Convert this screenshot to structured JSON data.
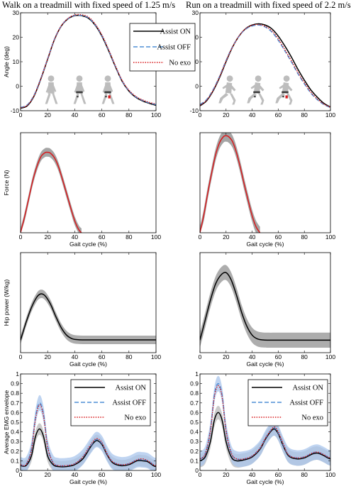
{
  "titles": {
    "left": "Walk on a treadmill with fixed speed of 1.25 m/s",
    "right": "Run on a treadmill with fixed speed of 2.2 m/s"
  },
  "legend": {
    "assist_on": "Assist ON",
    "assist_off": "Assist OFF",
    "no_exo": "No exo"
  },
  "colors": {
    "assist_on": "#000000",
    "assist_off": "#4f8fd6",
    "no_exo": "#d7191c",
    "force_band": "#a0a0a0",
    "force_line": "#d7191c",
    "power_band": "#a9a9a9",
    "emg_band_on": "#b9b9b9",
    "emg_band_off": "#a9c6ec"
  },
  "icons": [
    "walking-figure-icon",
    "walking-exo-figure-icon",
    "walking-exo-active-figure-icon",
    "running-figure-icon",
    "running-exo-figure-icon",
    "running-exo-active-figure-icon"
  ],
  "chart_data": [
    {
      "panel": "walk-angle",
      "type": "line",
      "xlabel": "",
      "ylabel": "Angle (deg)",
      "xlim": [
        0,
        100
      ],
      "ylim": [
        -10,
        30
      ],
      "xticks": [
        0,
        20,
        40,
        60,
        80,
        100
      ],
      "yticks": [
        -10,
        0,
        10,
        20,
        30
      ],
      "legend_position": "top-right",
      "series": [
        {
          "name": "Assist ON",
          "style": "solid",
          "x": [
            0,
            5,
            10,
            15,
            20,
            25,
            30,
            35,
            40,
            45,
            50,
            55,
            60,
            65,
            70,
            75,
            80,
            85,
            90,
            95,
            100
          ],
          "y": [
            -9,
            -8,
            -4,
            3,
            11,
            19,
            24.5,
            27.5,
            28.8,
            28.8,
            27.8,
            25,
            20.5,
            14.5,
            8,
            2,
            -2,
            -4.5,
            -6,
            -7,
            -7.8
          ]
        },
        {
          "name": "Assist OFF",
          "style": "dashed",
          "x": [
            0,
            5,
            10,
            15,
            20,
            25,
            30,
            35,
            40,
            45,
            50,
            55,
            60,
            65,
            70,
            75,
            80,
            85,
            90,
            95,
            100
          ],
          "y": [
            -8.7,
            -7.6,
            -3.6,
            3.3,
            11.3,
            19.2,
            24.6,
            27.6,
            28.9,
            28.9,
            28,
            25.2,
            20.8,
            14.8,
            8.2,
            2.2,
            -1.8,
            -4.3,
            -5.8,
            -6.8,
            -7.5
          ]
        },
        {
          "name": "No exo",
          "style": "dotted",
          "x": [
            0,
            5,
            10,
            15,
            20,
            25,
            30,
            35,
            40,
            45,
            50,
            55,
            60,
            65,
            70,
            75,
            80,
            85,
            90,
            95,
            100
          ],
          "y": [
            -8.8,
            -7.8,
            -3.8,
            3.2,
            11.2,
            19.1,
            24.6,
            27.7,
            29.1,
            29.2,
            28.3,
            25.5,
            21,
            15,
            8.4,
            2.4,
            -1.6,
            -4.1,
            -5.6,
            -6.6,
            -7.3
          ]
        }
      ]
    },
    {
      "panel": "run-angle",
      "type": "line",
      "xlabel": "",
      "ylabel": "",
      "xlim": [
        0,
        100
      ],
      "ylim": [
        -10,
        30
      ],
      "xticks": [
        0,
        20,
        40,
        60,
        80,
        100
      ],
      "yticks": [
        -10,
        0,
        10,
        20,
        30
      ],
      "series": [
        {
          "name": "Assist ON",
          "style": "solid",
          "x": [
            0,
            5,
            10,
            15,
            20,
            25,
            30,
            35,
            40,
            45,
            50,
            55,
            60,
            65,
            70,
            75,
            80,
            85,
            90,
            95,
            100
          ],
          "y": [
            -8,
            -6,
            -2,
            3.5,
            10,
            16,
            20.5,
            23.5,
            25,
            25.5,
            25,
            23.5,
            20.5,
            16.5,
            12,
            7,
            2.5,
            -1.5,
            -4.5,
            -7,
            -8.5
          ]
        },
        {
          "name": "Assist OFF",
          "style": "dashed",
          "x": [
            0,
            5,
            10,
            15,
            20,
            25,
            30,
            35,
            40,
            45,
            50,
            55,
            60,
            65,
            70,
            75,
            80,
            85,
            90,
            95,
            100
          ],
          "y": [
            -7.5,
            -5.5,
            -1.5,
            4,
            10.5,
            16.2,
            20.5,
            23.3,
            24.6,
            25,
            24.2,
            22.2,
            18.8,
            14.5,
            10,
            5.2,
            1,
            -2.8,
            -5.5,
            -7.5,
            -8.7
          ]
        },
        {
          "name": "No exo",
          "style": "dotted",
          "x": [
            0,
            5,
            10,
            15,
            20,
            25,
            30,
            35,
            40,
            45,
            50,
            55,
            60,
            65,
            70,
            75,
            80,
            85,
            90,
            95,
            100
          ],
          "y": [
            -7.8,
            -5.8,
            -1.8,
            3.8,
            10.3,
            16.1,
            20.6,
            23.5,
            24.9,
            25.2,
            24.5,
            22.7,
            19.4,
            15,
            10.5,
            5.7,
            1.5,
            -2.4,
            -5.2,
            -7.3,
            -8.6
          ]
        }
      ]
    },
    {
      "panel": "walk-force",
      "type": "line",
      "xlabel": "Gait cycle (%)",
      "ylabel": "Force (N)",
      "xlim": [
        0,
        100
      ],
      "ylim": [
        0,
        500
      ],
      "xticks": [
        0,
        20,
        40,
        60,
        80,
        100
      ],
      "yticks": [],
      "series": [
        {
          "name": "",
          "style": "solid-with-band",
          "band": 22,
          "x": [
            0,
            3,
            6,
            9,
            12,
            15,
            18,
            20,
            22,
            25,
            28,
            31,
            34,
            37,
            40,
            43,
            45
          ],
          "y": [
            0,
            80,
            170,
            260,
            330,
            380,
            400,
            402,
            398,
            375,
            330,
            265,
            195,
            125,
            60,
            15,
            0
          ]
        }
      ]
    },
    {
      "panel": "run-force",
      "type": "line",
      "xlabel": "Gait cycle (%)",
      "ylabel": "",
      "xlim": [
        0,
        100
      ],
      "ylim": [
        0,
        500
      ],
      "xticks": [
        0,
        20,
        40,
        60,
        80,
        100
      ],
      "yticks": [],
      "series": [
        {
          "name": "",
          "style": "solid-with-band",
          "band": 30,
          "x": [
            0,
            3,
            6,
            9,
            12,
            15,
            18,
            20,
            22,
            25,
            28,
            31,
            34,
            37,
            40,
            43,
            46
          ],
          "y": [
            0,
            90,
            200,
            300,
            390,
            450,
            480,
            485,
            480,
            455,
            400,
            325,
            240,
            160,
            85,
            30,
            0
          ]
        }
      ]
    },
    {
      "panel": "walk-power",
      "type": "line",
      "xlabel": "Gait cycle (%)",
      "ylabel": "Hip power (W/kg)",
      "xlim": [
        0,
        100
      ],
      "ylim": [
        -0.5,
        3.5
      ],
      "xticks": [
        0,
        20,
        40,
        60,
        80,
        100
      ],
      "yticks": [],
      "series": [
        {
          "name": "",
          "style": "solid-with-band",
          "band": 0.17,
          "x": [
            0,
            4,
            8,
            12,
            15,
            18,
            22,
            26,
            30,
            34,
            38,
            42,
            46,
            50,
            60,
            70,
            80,
            90,
            100
          ],
          "y": [
            0,
            0.7,
            1.3,
            1.72,
            1.85,
            1.78,
            1.45,
            0.95,
            0.5,
            0.2,
            0.06,
            0.02,
            0.01,
            0.01,
            0.01,
            0.01,
            0.01,
            0.01,
            0.01
          ]
        }
      ]
    },
    {
      "panel": "run-power",
      "type": "line",
      "xlabel": "Gait cycle (%)",
      "ylabel": "",
      "xlim": [
        0,
        100
      ],
      "ylim": [
        -0.5,
        3.5
      ],
      "xticks": [
        0,
        20,
        40,
        60,
        80,
        100
      ],
      "yticks": [],
      "series": [
        {
          "name": "",
          "style": "solid-with-band",
          "band": 0.3,
          "x": [
            0,
            4,
            8,
            12,
            16,
            20,
            24,
            28,
            32,
            36,
            40,
            44,
            48,
            52,
            60,
            70,
            80,
            90,
            100
          ],
          "y": [
            0,
            0.8,
            1.6,
            2.25,
            2.6,
            2.7,
            2.4,
            1.8,
            1.1,
            0.55,
            0.2,
            0.05,
            0.01,
            0,
            0,
            0,
            0,
            0,
            0
          ]
        }
      ]
    },
    {
      "panel": "walk-emg",
      "type": "line",
      "xlabel": "Gait cycle (%)",
      "ylabel": "Average EMG envelope",
      "xlim": [
        0,
        100
      ],
      "ylim": [
        0,
        1
      ],
      "xticks": [
        0,
        20,
        40,
        60,
        80,
        100
      ],
      "yticks": [
        0,
        0.1,
        0.2,
        0.3,
        0.4,
        0.5,
        0.6,
        0.7,
        0.8,
        0.9,
        1
      ],
      "legend_position": "top-right",
      "series": [
        {
          "name": "Assist ON",
          "style": "solid",
          "band": 0.06,
          "x": [
            0,
            4,
            8,
            11,
            14,
            17,
            20,
            24,
            28,
            34,
            40,
            46,
            52,
            56,
            60,
            64,
            68,
            74,
            80,
            86,
            90,
            94,
            98,
            100
          ],
          "y": [
            0.05,
            0.05,
            0.15,
            0.35,
            0.43,
            0.35,
            0.15,
            0.06,
            0.04,
            0.04,
            0.06,
            0.12,
            0.25,
            0.31,
            0.27,
            0.16,
            0.08,
            0.05,
            0.06,
            0.1,
            0.1,
            0.09,
            0.05,
            0.04
          ]
        },
        {
          "name": "Assist OFF",
          "style": "dashed",
          "band": 0.08,
          "x": [
            0,
            4,
            8,
            11,
            14,
            17,
            20,
            24,
            28,
            34,
            40,
            46,
            52,
            56,
            60,
            64,
            68,
            74,
            80,
            86,
            90,
            94,
            98,
            100
          ],
          "y": [
            0.06,
            0.06,
            0.22,
            0.55,
            0.7,
            0.58,
            0.25,
            0.08,
            0.05,
            0.05,
            0.07,
            0.14,
            0.26,
            0.32,
            0.28,
            0.17,
            0.09,
            0.06,
            0.07,
            0.11,
            0.11,
            0.1,
            0.06,
            0.05
          ]
        },
        {
          "name": "No exo",
          "style": "dotted",
          "x": [
            0,
            4,
            8,
            11,
            14,
            17,
            20,
            24,
            28,
            34,
            40,
            46,
            52,
            56,
            60,
            64,
            68,
            74,
            80,
            86,
            90,
            94,
            98,
            100
          ],
          "y": [
            0.06,
            0.06,
            0.21,
            0.53,
            0.68,
            0.56,
            0.24,
            0.08,
            0.05,
            0.05,
            0.07,
            0.14,
            0.27,
            0.33,
            0.29,
            0.17,
            0.09,
            0.06,
            0.07,
            0.11,
            0.12,
            0.1,
            0.06,
            0.05
          ]
        }
      ]
    },
    {
      "panel": "run-emg",
      "type": "line",
      "xlabel": "Gait cycle (%)",
      "ylabel": "",
      "xlim": [
        0,
        100
      ],
      "ylim": [
        0,
        1
      ],
      "xticks": [
        0,
        20,
        40,
        60,
        80,
        100
      ],
      "yticks": [
        0,
        0.1,
        0.2,
        0.3,
        0.4,
        0.5,
        0.6,
        0.7,
        0.8,
        0.9,
        1
      ],
      "legend_position": "top-right",
      "series": [
        {
          "name": "Assist ON",
          "style": "solid",
          "band": 0.07,
          "x": [
            0,
            4,
            8,
            11,
            14,
            17,
            20,
            24,
            28,
            34,
            40,
            46,
            50,
            54,
            57,
            60,
            64,
            68,
            74,
            80,
            86,
            90,
            94,
            98,
            100
          ],
          "y": [
            0.1,
            0.14,
            0.3,
            0.52,
            0.6,
            0.52,
            0.3,
            0.14,
            0.1,
            0.11,
            0.14,
            0.22,
            0.32,
            0.4,
            0.43,
            0.38,
            0.25,
            0.15,
            0.12,
            0.13,
            0.17,
            0.18,
            0.16,
            0.13,
            0.12
          ]
        },
        {
          "name": "Assist OFF",
          "style": "dashed",
          "band": 0.08,
          "x": [
            0,
            4,
            8,
            11,
            14,
            17,
            20,
            24,
            28,
            34,
            40,
            46,
            50,
            54,
            57,
            60,
            64,
            68,
            74,
            80,
            86,
            90,
            94,
            98,
            100
          ],
          "y": [
            0.12,
            0.17,
            0.42,
            0.78,
            0.9,
            0.78,
            0.42,
            0.18,
            0.12,
            0.12,
            0.15,
            0.23,
            0.33,
            0.41,
            0.44,
            0.39,
            0.26,
            0.16,
            0.13,
            0.14,
            0.18,
            0.19,
            0.17,
            0.14,
            0.13
          ]
        },
        {
          "name": "No exo",
          "style": "dotted",
          "x": [
            0,
            4,
            8,
            11,
            14,
            17,
            20,
            24,
            28,
            34,
            40,
            46,
            50,
            54,
            57,
            60,
            64,
            68,
            74,
            80,
            86,
            90,
            94,
            98,
            100
          ],
          "y": [
            0.12,
            0.17,
            0.41,
            0.76,
            0.88,
            0.76,
            0.41,
            0.18,
            0.12,
            0.12,
            0.15,
            0.23,
            0.33,
            0.41,
            0.45,
            0.4,
            0.27,
            0.16,
            0.13,
            0.14,
            0.18,
            0.19,
            0.17,
            0.14,
            0.13
          ]
        }
      ]
    }
  ]
}
